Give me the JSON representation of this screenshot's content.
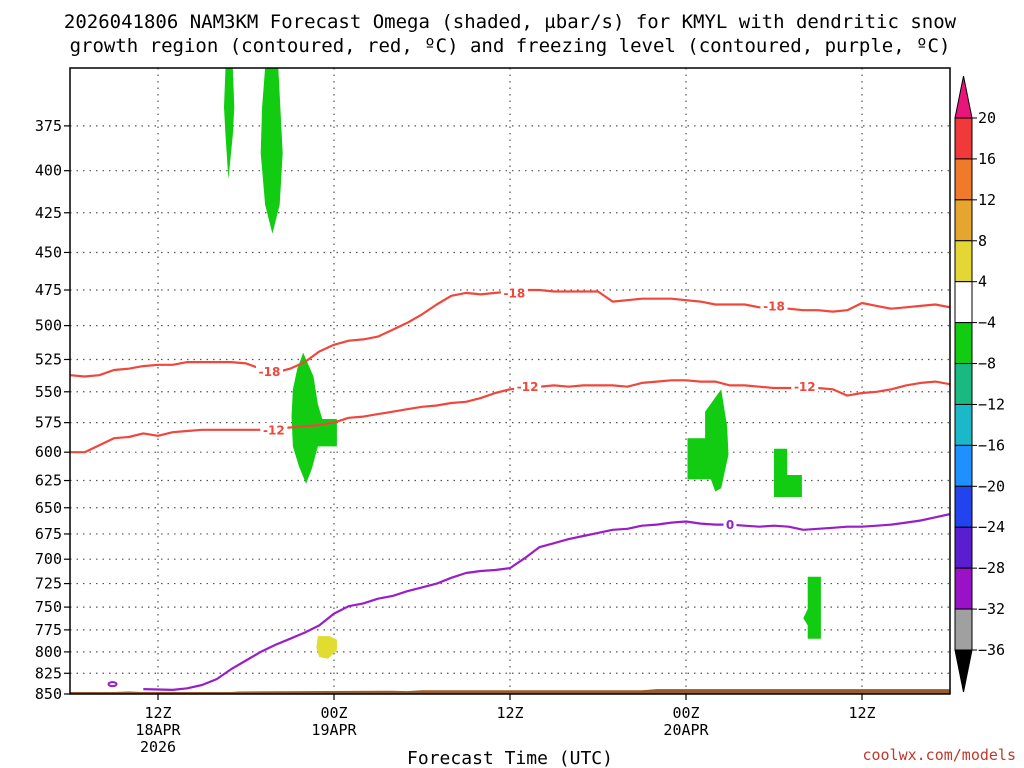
{
  "title": {
    "line1": "2026041806 NAM3KM Forecast Omega (shaded, µbar/s) for KMYL with dendritic snow",
    "line2": "growth region (contoured, red, ºC) and freezing level (contoured, purple, ºC)"
  },
  "credit": "coolwx.com/models",
  "colors": {
    "dgz": "#f0473c",
    "freezing": "#9a1ec8",
    "omega_neg": "#11cc11",
    "omega_pos": "#e0dc30",
    "terrain": "#9b5a2a",
    "grid": "#555555"
  },
  "chart_data": {
    "type": "time-height cross section",
    "xlabel": "Forecast Time (UTC)",
    "ylabel": "",
    "x_unit": "hours since 2026-04-18 06Z",
    "xlim": [
      0,
      60
    ],
    "ylim": [
      850,
      345
    ],
    "yticks": [
      375,
      400,
      425,
      450,
      475,
      500,
      525,
      550,
      575,
      600,
      625,
      650,
      675,
      700,
      725,
      750,
      775,
      800,
      825,
      850
    ],
    "xticks": [
      {
        "x": 6,
        "lines": [
          "12Z",
          "18APR",
          "2026"
        ]
      },
      {
        "x": 18,
        "lines": [
          "00Z",
          "19APR"
        ]
      },
      {
        "x": 30,
        "lines": [
          "12Z"
        ]
      },
      {
        "x": 42,
        "lines": [
          "00Z",
          "20APR"
        ]
      },
      {
        "x": 54,
        "lines": [
          "12Z"
        ]
      }
    ],
    "grid": true,
    "colorbar": {
      "labels": [
        "20",
        "16",
        "12",
        "8",
        "4",
        "−4",
        "−8",
        "−12",
        "−16",
        "−20",
        "−24",
        "−28",
        "−32",
        "−36"
      ],
      "colors": [
        "#f03a3a",
        "#f07a2a",
        "#e6a62e",
        "#e4d634",
        "#ffffff",
        "#11cc11",
        "#19b982",
        "#1ab8c8",
        "#1e90ff",
        "#2244ee",
        "#5a1ed0",
        "#9a12c8",
        "#a0a0a0"
      ],
      "top_arrow": "#e8157a",
      "bottom_arrow": "#000000"
    },
    "contours": [
      {
        "name": "-18",
        "color": "#f0473c",
        "points": [
          [
            0,
            537
          ],
          [
            1,
            538
          ],
          [
            2,
            537
          ],
          [
            3,
            533
          ],
          [
            4,
            532
          ],
          [
            5,
            530
          ],
          [
            6,
            529
          ],
          [
            7,
            529
          ],
          [
            8,
            527
          ],
          [
            9,
            527
          ],
          [
            10,
            527
          ],
          [
            11,
            527
          ],
          [
            12,
            528
          ],
          [
            13,
            532
          ],
          [
            14,
            535
          ],
          [
            15,
            532
          ],
          [
            16,
            527
          ],
          [
            17,
            519
          ],
          [
            18,
            514
          ],
          [
            19,
            511
          ],
          [
            20,
            510
          ],
          [
            21,
            508
          ],
          [
            22,
            503
          ],
          [
            23,
            498
          ],
          [
            24,
            492
          ],
          [
            25,
            485
          ],
          [
            26,
            479
          ],
          [
            27,
            477
          ],
          [
            28,
            478
          ],
          [
            29,
            477
          ],
          [
            30,
            476
          ],
          [
            31,
            475
          ],
          [
            32,
            475
          ],
          [
            33,
            476
          ],
          [
            34,
            476
          ],
          [
            35,
            476
          ],
          [
            36,
            476
          ],
          [
            37,
            483
          ],
          [
            38,
            482
          ],
          [
            39,
            481
          ],
          [
            40,
            481
          ],
          [
            41,
            481
          ],
          [
            42,
            482
          ],
          [
            43,
            483
          ],
          [
            44,
            485
          ],
          [
            45,
            485
          ],
          [
            46,
            485
          ],
          [
            47,
            487
          ],
          [
            48,
            488
          ],
          [
            49,
            488
          ],
          [
            50,
            489
          ],
          [
            51,
            489
          ],
          [
            52,
            490
          ],
          [
            53,
            489
          ],
          [
            54,
            484
          ],
          [
            55,
            486
          ],
          [
            56,
            488
          ],
          [
            57,
            487
          ],
          [
            58,
            486
          ],
          [
            59,
            485
          ],
          [
            60,
            487
          ]
        ],
        "labels": [
          [
            13.6,
            534
          ],
          [
            30.3,
            477
          ],
          [
            48,
            486
          ]
        ]
      },
      {
        "name": "-12",
        "color": "#f0473c",
        "points": [
          [
            0,
            600
          ],
          [
            1,
            600
          ],
          [
            2,
            594
          ],
          [
            3,
            588
          ],
          [
            4,
            587
          ],
          [
            5,
            584
          ],
          [
            6,
            586
          ],
          [
            7,
            583
          ],
          [
            8,
            582
          ],
          [
            9,
            581
          ],
          [
            10,
            581
          ],
          [
            11,
            581
          ],
          [
            12,
            581
          ],
          [
            13,
            581
          ],
          [
            14,
            580
          ],
          [
            15,
            579
          ],
          [
            16,
            578
          ],
          [
            17,
            577
          ],
          [
            18,
            575
          ],
          [
            19,
            571
          ],
          [
            20,
            570
          ],
          [
            21,
            568
          ],
          [
            22,
            566
          ],
          [
            23,
            564
          ],
          [
            24,
            562
          ],
          [
            25,
            561
          ],
          [
            26,
            559
          ],
          [
            27,
            558
          ],
          [
            28,
            555
          ],
          [
            29,
            551
          ],
          [
            30,
            548
          ],
          [
            31,
            547
          ],
          [
            32,
            546
          ],
          [
            33,
            545
          ],
          [
            34,
            546
          ],
          [
            35,
            545
          ],
          [
            36,
            545
          ],
          [
            37,
            545
          ],
          [
            38,
            546
          ],
          [
            39,
            543
          ],
          [
            40,
            542
          ],
          [
            41,
            541
          ],
          [
            42,
            541
          ],
          [
            43,
            542
          ],
          [
            44,
            542
          ],
          [
            45,
            545
          ],
          [
            46,
            545
          ],
          [
            47,
            546
          ],
          [
            48,
            547
          ],
          [
            49,
            547
          ],
          [
            50,
            547
          ],
          [
            51,
            547
          ],
          [
            52,
            548
          ],
          [
            53,
            553
          ],
          [
            54,
            551
          ],
          [
            55,
            550
          ],
          [
            56,
            548
          ],
          [
            57,
            545
          ],
          [
            58,
            543
          ],
          [
            59,
            542
          ],
          [
            60,
            544
          ]
        ],
        "labels": [
          [
            13.9,
            581
          ],
          [
            31.2,
            546
          ],
          [
            50.1,
            546
          ]
        ]
      },
      {
        "name": "0",
        "color": "#9a1ec8",
        "points": [
          [
            5,
            844
          ],
          [
            7,
            845
          ],
          [
            8,
            843
          ],
          [
            9,
            839
          ],
          [
            10,
            832
          ],
          [
            11,
            820
          ],
          [
            12,
            810
          ],
          [
            13,
            800
          ],
          [
            14,
            792
          ],
          [
            15,
            785
          ],
          [
            16,
            778
          ],
          [
            17,
            770
          ],
          [
            18,
            757
          ],
          [
            19,
            749
          ],
          [
            20,
            746
          ],
          [
            21,
            741
          ],
          [
            22,
            738
          ],
          [
            23,
            733
          ],
          [
            24,
            729
          ],
          [
            25,
            725
          ],
          [
            26,
            719
          ],
          [
            27,
            714
          ],
          [
            28,
            712
          ],
          [
            29,
            711
          ],
          [
            30,
            709
          ],
          [
            31,
            699
          ],
          [
            32,
            688
          ],
          [
            33,
            684
          ],
          [
            34,
            680
          ],
          [
            35,
            677
          ],
          [
            36,
            674
          ],
          [
            37,
            671
          ],
          [
            38,
            670
          ],
          [
            39,
            667
          ],
          [
            40,
            666
          ],
          [
            41,
            664
          ],
          [
            42,
            663
          ],
          [
            43,
            665
          ],
          [
            44,
            666
          ],
          [
            45,
            666
          ],
          [
            46,
            667
          ],
          [
            47,
            668
          ],
          [
            48,
            667
          ],
          [
            49,
            668
          ],
          [
            50,
            671
          ],
          [
            51,
            670
          ],
          [
            52,
            669
          ],
          [
            53,
            668
          ],
          [
            54,
            668
          ],
          [
            55,
            667
          ],
          [
            56,
            666
          ],
          [
            57,
            664
          ],
          [
            58,
            662
          ],
          [
            59,
            659
          ],
          [
            60,
            656
          ]
        ],
        "labels": [
          [
            45,
            666
          ]
        ]
      }
    ],
    "omega_regions": [
      {
        "name": "-4 to -8",
        "color": "#11cc11",
        "poly": [
          [
            10.6,
            345
          ],
          [
            11.1,
            345
          ],
          [
            11.2,
            365
          ],
          [
            11.1,
            380
          ],
          [
            10.8,
            405
          ],
          [
            10.6,
            380
          ],
          [
            10.5,
            365
          ]
        ]
      },
      {
        "name": "-4 to -8",
        "color": "#11cc11",
        "poly": [
          [
            13.3,
            345
          ],
          [
            14.2,
            345
          ],
          [
            14.5,
            390
          ],
          [
            14.3,
            420
          ],
          [
            13.8,
            438
          ],
          [
            13.3,
            420
          ],
          [
            13.0,
            390
          ],
          [
            13.1,
            365
          ]
        ]
      },
      {
        "name": "-4 to -8",
        "color": "#11cc11",
        "poly": [
          [
            15.9,
            520
          ],
          [
            16.6,
            538
          ],
          [
            16.9,
            560
          ],
          [
            17.2,
            572
          ],
          [
            18.2,
            572
          ],
          [
            18.2,
            595
          ],
          [
            16.9,
            595
          ],
          [
            16.5,
            614
          ],
          [
            16.1,
            628
          ],
          [
            15.6,
            612
          ],
          [
            15.2,
            595
          ],
          [
            15.1,
            570
          ],
          [
            15.2,
            548
          ],
          [
            15.5,
            532
          ]
        ]
      },
      {
        "name": "-4 to -8",
        "color": "#11cc11",
        "poly": [
          [
            43.3,
            566
          ],
          [
            44.4,
            548
          ],
          [
            44.8,
            578
          ],
          [
            44.9,
            602
          ],
          [
            44.4,
            632
          ],
          [
            44.0,
            635
          ],
          [
            43.7,
            624
          ],
          [
            42.1,
            624
          ],
          [
            42.1,
            588
          ],
          [
            43.3,
            588
          ]
        ]
      },
      {
        "name": "-4 to -8",
        "color": "#11cc11",
        "poly": [
          [
            48.0,
            597
          ],
          [
            48.9,
            597
          ],
          [
            48.9,
            620
          ],
          [
            49.9,
            620
          ],
          [
            49.9,
            640
          ],
          [
            48.0,
            640
          ]
        ]
      },
      {
        "name": "-4 to -8",
        "color": "#11cc11",
        "poly": [
          [
            50.3,
            718
          ],
          [
            51.2,
            718
          ],
          [
            51.2,
            785
          ],
          [
            50.3,
            785
          ],
          [
            50.3,
            770
          ],
          [
            50.0,
            762
          ],
          [
            50.3,
            752
          ]
        ]
      },
      {
        "name": "4 to 8",
        "color": "#e0dc30",
        "poly": [
          [
            16.9,
            782
          ],
          [
            17.7,
            782
          ],
          [
            18.2,
            786
          ],
          [
            18.2,
            798
          ],
          [
            17.6,
            808
          ],
          [
            17.0,
            806
          ],
          [
            16.8,
            795
          ]
        ]
      }
    ]
  }
}
